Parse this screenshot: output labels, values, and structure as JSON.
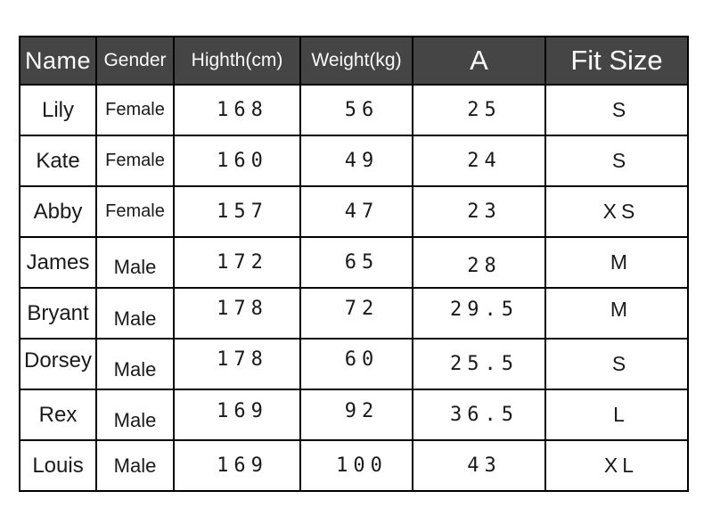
{
  "table": {
    "columns": [
      {
        "key": "name",
        "label": "Name"
      },
      {
        "key": "gender",
        "label": "Gender"
      },
      {
        "key": "height",
        "label": "Highth(cm)"
      },
      {
        "key": "weight",
        "label": "Weight(kg)"
      },
      {
        "key": "a",
        "label": "A"
      },
      {
        "key": "fit",
        "label": "Fit Size"
      }
    ],
    "rows": [
      {
        "name": "Lily",
        "gender": "Female",
        "height": "168",
        "weight": "56",
        "a": "25",
        "fit": "S"
      },
      {
        "name": "Kate",
        "gender": "Female",
        "height": "160",
        "weight": "49",
        "a": "24",
        "fit": "S"
      },
      {
        "name": "Abby",
        "gender": "Female",
        "height": "157",
        "weight": "47",
        "a": "23",
        "fit": "XS"
      },
      {
        "name": "James",
        "gender": "Male",
        "height": "172",
        "weight": "65",
        "a": "28",
        "fit": "M"
      },
      {
        "name": "Bryant",
        "gender": "Male",
        "height": "178",
        "weight": "72",
        "a": "29.5",
        "fit": "M"
      },
      {
        "name": "Dorsey",
        "gender": "Male",
        "height": "178",
        "weight": "60",
        "a": "25.5",
        "fit": "S"
      },
      {
        "name": "Rex",
        "gender": "Male",
        "height": "169",
        "weight": "92",
        "a": "36.5",
        "fit": "L"
      },
      {
        "name": "Louis",
        "gender": "Male",
        "height": "169",
        "weight": "100",
        "a": "43",
        "fit": "XL"
      }
    ],
    "header_bg": "#454545",
    "header_text_color": "#fafafa",
    "border_color": "#000000"
  }
}
